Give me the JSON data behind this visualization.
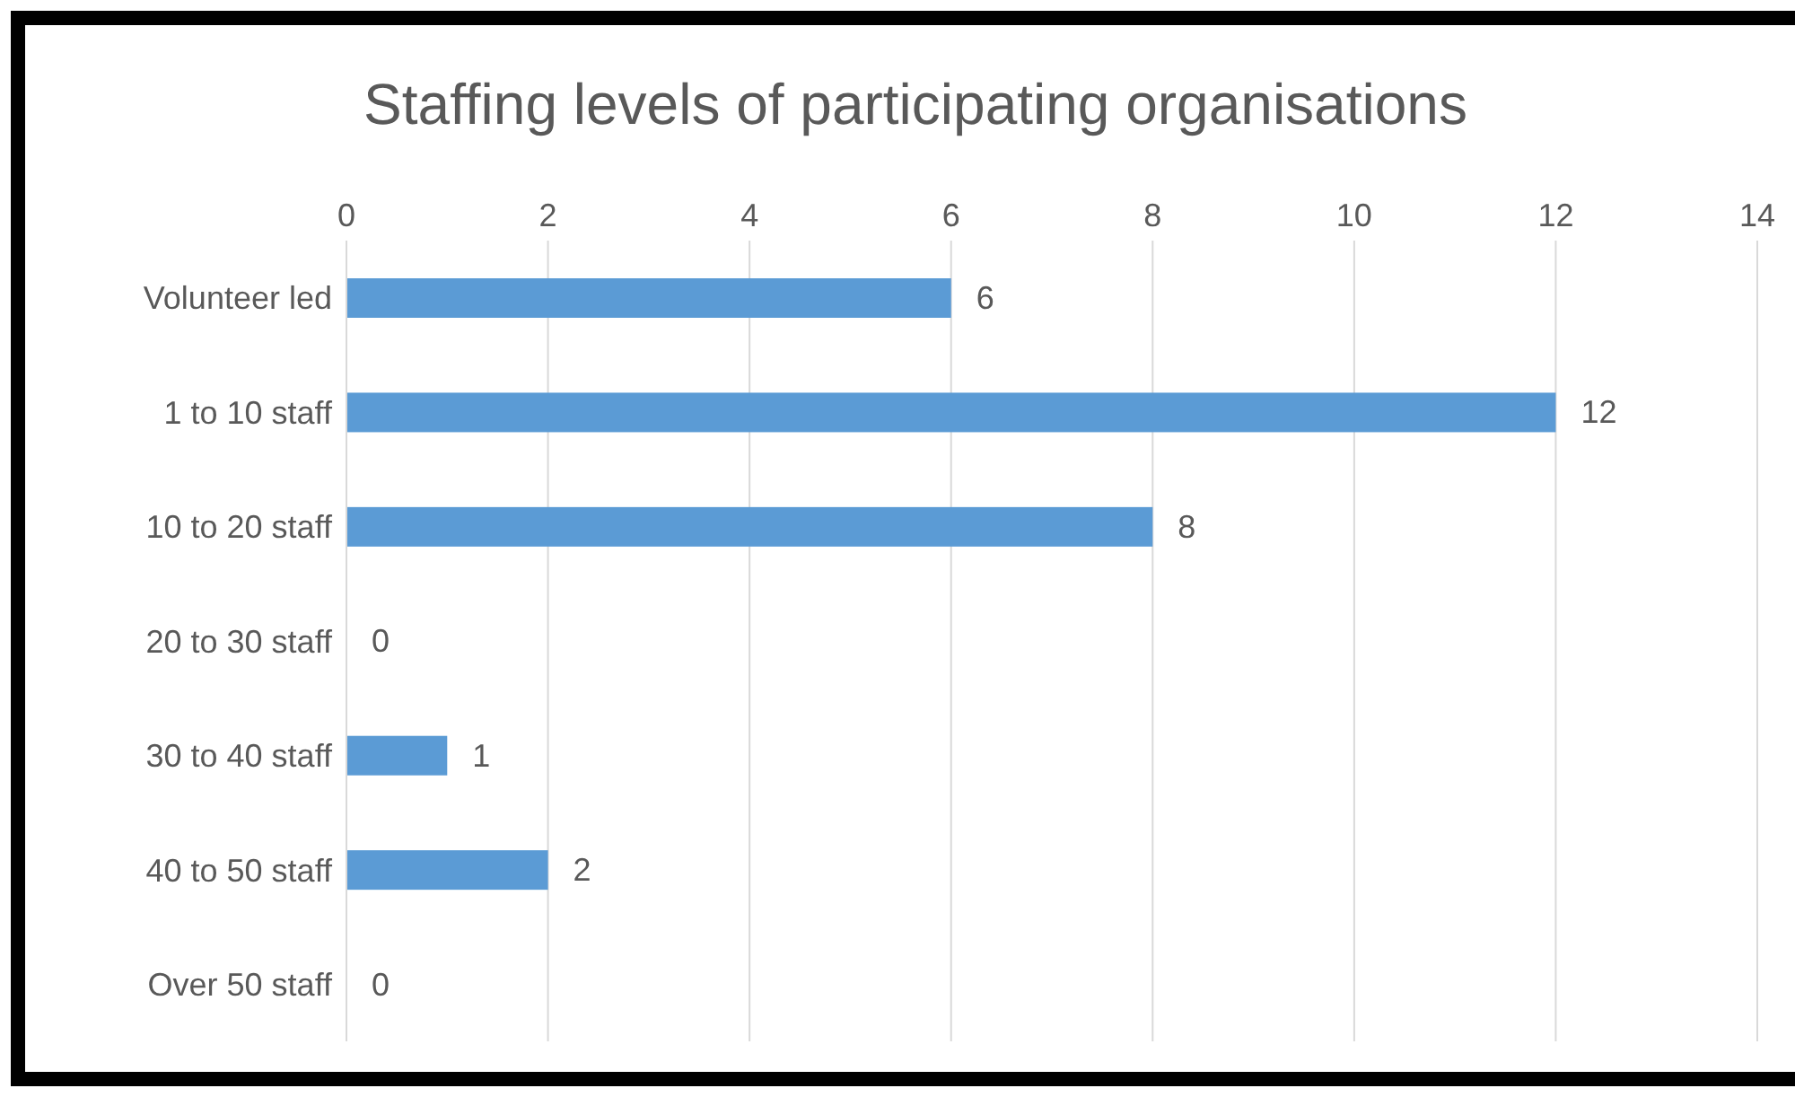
{
  "chart_data": {
    "type": "bar",
    "orientation": "horizontal",
    "title": "Staffing levels of participating organisations",
    "categories": [
      "Volunteer led",
      "1 to 10 staff",
      "10 to 20 staff",
      "20 to 30 staff",
      "30 to 40 staff",
      "40 to 50 staff",
      "Over 50 staff"
    ],
    "values": [
      6,
      12,
      8,
      0,
      1,
      2,
      0
    ],
    "color": "#5b9bd5",
    "xlim": [
      0,
      14
    ],
    "xticks": [
      0,
      2,
      4,
      6,
      8,
      10,
      12,
      14
    ],
    "grid": "x",
    "data_labels": true
  }
}
